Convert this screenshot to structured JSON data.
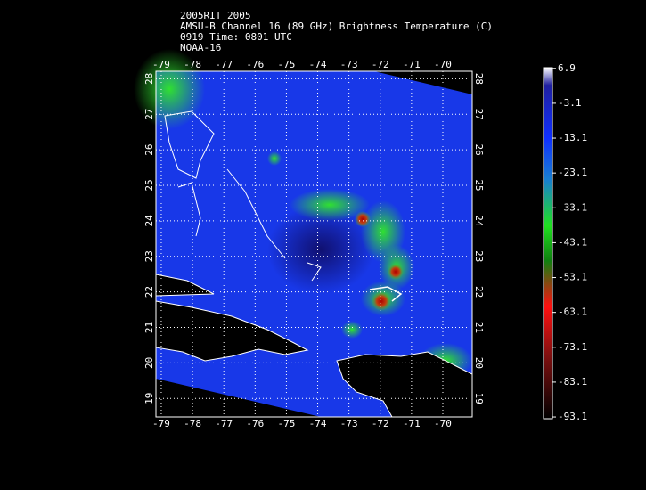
{
  "header": {
    "lines": [
      "2005RIT 2005",
      "AMSU-B Channel 16 (89 GHz) Brightness Temperature (C)",
      "0919 Time: 0801 UTC",
      "NOAA-16"
    ]
  },
  "map": {
    "lonlim": [
      -79.17,
      -69.06
    ],
    "latlim": [
      18.48,
      28.21
    ],
    "lon_ticks": [
      -79,
      -78,
      -77,
      -76,
      -75,
      -74,
      -73,
      -72,
      -71,
      -70
    ],
    "lat_ticks": [
      19,
      20,
      21,
      22,
      23,
      24,
      25,
      26,
      27,
      28
    ],
    "grid": true
  },
  "colorbar": {
    "range": [
      -93.6,
      7.1
    ],
    "ticks": [
      6.9,
      -3.1,
      -13.1,
      -23.1,
      -33.1,
      -43.1,
      -53.1,
      -63.1,
      -73.1,
      -83.1,
      -93.1
    ]
  }
}
